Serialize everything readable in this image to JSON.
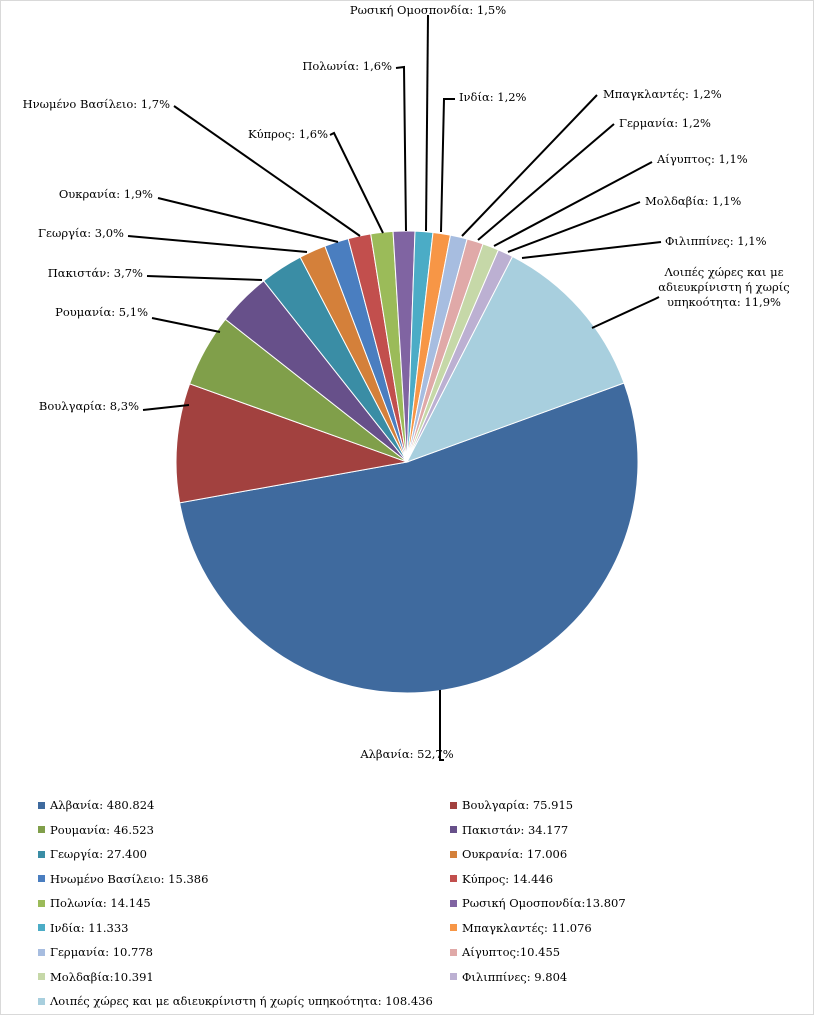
{
  "chart_data": {
    "type": "pie",
    "slices": [
      {
        "label": "Αλβανία",
        "value": 480824,
        "pct_label": "Αλβανία: 52,7%",
        "legend_label": "Αλβανία: 480.824",
        "color": "#3F6A9E"
      },
      {
        "label": "Βουλγαρία",
        "value": 75915,
        "pct_label": "Βουλγαρία: 8,3%",
        "legend_label": "Βουλγαρία: 75.915",
        "color": "#A2413F"
      },
      {
        "label": "Ρουμανία",
        "value": 46523,
        "pct_label": "Ρουμανία: 5,1%",
        "legend_label": "Ρουμανία: 46.523",
        "color": "#809F4A"
      },
      {
        "label": "Πακιστάν",
        "value": 34177,
        "pct_label": "Πακιστάν: 3,7%",
        "legend_label": "Πακιστάν: 34.177",
        "color": "#67508A"
      },
      {
        "label": "Γεωργία",
        "value": 27400,
        "pct_label": "Γεωργία: 3,0%",
        "legend_label": "Γεωργία: 27.400",
        "color": "#3A8DA5"
      },
      {
        "label": "Ουκρανία",
        "value": 17006,
        "pct_label": "Ουκρανία: 1,9%",
        "legend_label": "Ουκρανία: 17.006",
        "color": "#D4803A"
      },
      {
        "label": "Ηνωμένο Βασίλειο",
        "value": 15386,
        "pct_label": "Ηνωμένο Βασίλειο: 1,7%",
        "legend_label": "Ηνωμένο Βασίλειο: 15.386",
        "color": "#4A7EC0"
      },
      {
        "label": "Κύπρος",
        "value": 14446,
        "pct_label": "Κύπρος: 1,6%",
        "legend_label": "Κύπρος: 14.446",
        "color": "#C24F4D"
      },
      {
        "label": "Πολωνία",
        "value": 14145,
        "pct_label": "Πολωνία: 1,6%",
        "legend_label": "Πολωνία: 14.145",
        "color": "#9BBB59"
      },
      {
        "label": "Ρωσική Ομοσπονδία",
        "value": 13807,
        "pct_label": "Ρωσική Ομοσπονδία: 1,5%",
        "legend_label": "Ρωσική Ομοσπονδία:13.807",
        "color": "#8064A2"
      },
      {
        "label": "Ινδία",
        "value": 11333,
        "pct_label": "Ινδία: 1,2%",
        "legend_label": "Ινδία: 11.333",
        "color": "#4BACC6"
      },
      {
        "label": "Μπαγκλαντές",
        "value": 11076,
        "pct_label": "Μπαγκλαντές:  1,2%",
        "legend_label": "Μπαγκλαντές: 11.076",
        "color": "#F79646"
      },
      {
        "label": "Γερμανία",
        "value": 10778,
        "pct_label": "Γερμανία: 1,2%",
        "legend_label": "Γερμανία: 10.778",
        "color": "#A7BDE0"
      },
      {
        "label": "Αίγυπτος",
        "value": 10455,
        "pct_label": "Αίγυπτος: 1,1%",
        "legend_label": "Αίγυπτος:10.455",
        "color": "#E0A9A8"
      },
      {
        "label": "Μολδαβία",
        "value": 10391,
        "pct_label": "Μολδαβία: 1,1%",
        "legend_label": "Μολδαβία:10.391",
        "color": "#C6D8A8"
      },
      {
        "label": "Φιλιππίνες",
        "value": 9804,
        "pct_label": "Φιλιππίνες: 1,1%",
        "legend_label": "Φιλιππίνες: 9.804",
        "color": "#BCB0D2"
      },
      {
        "label": "Λοιπές χώρες και με αδιευκρίνιστη ή χωρίς υπηκοότητα",
        "value": 108436,
        "pct_label_lines": [
          "Λοιπές χώρες και με",
          "αδιευκρίνιστη ή χωρίς",
          "υπηκοότητα: 11,9%"
        ],
        "legend_label": "Λοιπές χώρες και με αδιευκρίνιστη ή χωρίς υπηκοότητα: 108.436",
        "color": "#A8CFDE"
      }
    ],
    "legend_position": "bottom"
  }
}
